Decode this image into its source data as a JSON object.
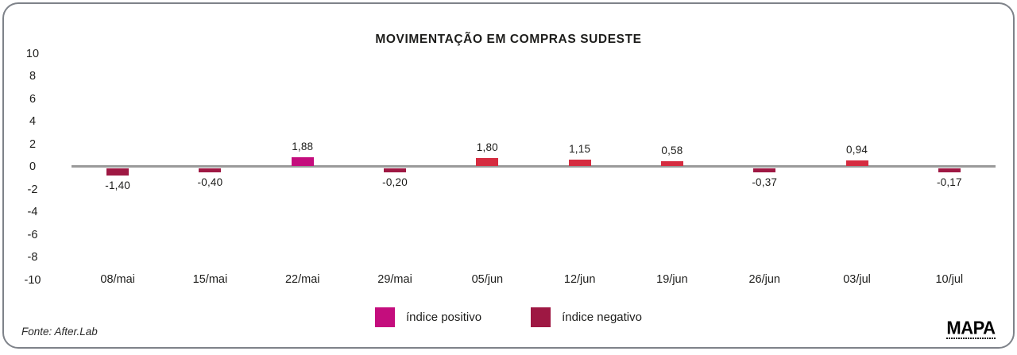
{
  "chart_data": {
    "type": "bar",
    "title": "MOVIMENTAÇÃO EM COMPRAS SUDESTE",
    "categories": [
      "08/mai",
      "15/mai",
      "22/mai",
      "29/mai",
      "05/jun",
      "12/jun",
      "19/jun",
      "26/jun",
      "03/jul",
      "10/jul"
    ],
    "values": [
      -1.4,
      -0.4,
      1.88,
      -0.2,
      1.8,
      1.15,
      0.58,
      -0.37,
      0.94,
      -0.17
    ],
    "value_labels": [
      "-1,40",
      "-0,40",
      "1,88",
      "-0,20",
      "1,80",
      "1,15",
      "0,58",
      "-0,37",
      "0,94",
      "-0,17"
    ],
    "bar_colors": [
      "#9e1843",
      "#9e1843",
      "#c40d7d",
      "#9e1843",
      "#d52c40",
      "#d52c40",
      "#d52c40",
      "#9e1843",
      "#d52c40",
      "#9e1843"
    ],
    "yticks": [
      "10",
      "8",
      "6",
      "4",
      "2",
      "0",
      "-2",
      "-4",
      "-6",
      "-8",
      "-10"
    ],
    "ylim": [
      -10,
      10
    ],
    "grid": false,
    "legend_position": "bottom",
    "legend": [
      {
        "label": "índice positivo",
        "color": "#c40d7d"
      },
      {
        "label": "índice negativo",
        "color": "#9e1843"
      }
    ],
    "colors": {
      "positive_highlight": "#c40d7d",
      "positive": "#d52c40",
      "negative": "#9e1843",
      "baseline": "#9a9a9a",
      "text": "#1d1d1b",
      "card_border": "#7e8289"
    }
  },
  "footer": {
    "source": "Fonte: After.Lab",
    "logo": "MAPA"
  }
}
